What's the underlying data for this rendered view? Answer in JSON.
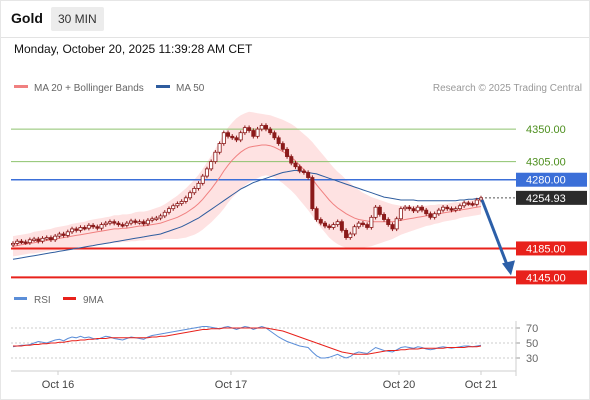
{
  "header": {
    "title": "Gold",
    "timeframe": "30 MIN"
  },
  "datetime": "Monday, October 20, 2025 11:39:28 AM CET",
  "credit": "Research © 2025 Trading Central",
  "colors": {
    "ma20": "#f08080",
    "ma50": "#2e5c9e",
    "band_fill": "#fdd8d8",
    "candle": "#8b1a1a",
    "support_line": "#e8211b",
    "pivot_line": "#3b6fd8",
    "resistance_line": "#8dc26d",
    "resistance_label": "#4d8f1e",
    "arrow": "#2c5fa8",
    "rsi": "#5b8ed8",
    "rsi_ma": "#e8211b"
  },
  "legend": {
    "ma20": "MA 20 + Bollinger Bands",
    "ma50": "MA 50"
  },
  "levels": [
    {
      "label": "4350.00",
      "kind": "resistance",
      "value": 4350
    },
    {
      "label": "4305.00",
      "kind": "resistance",
      "value": 4305
    },
    {
      "label": "4280.00",
      "kind": "pivot",
      "value": 4280
    },
    {
      "label": "4254.93",
      "kind": "last",
      "value": 4254.93
    },
    {
      "label": "4185.00",
      "kind": "support",
      "value": 4185
    },
    {
      "label": "4145.00",
      "kind": "support",
      "value": 4145
    }
  ],
  "rsi_panel": {
    "legend_rsi": "RSI",
    "legend_ma": "9MA",
    "ticks": [
      "70",
      "50",
      "30"
    ],
    "tick_values": [
      70,
      50,
      30
    ]
  },
  "x_axis": {
    "labels": [
      "Oct 16",
      "Oct 17",
      "Oct 20",
      "Oct 21"
    ]
  },
  "chart_data": {
    "type": "candlestick",
    "price_range": [
      4140,
      4375
    ],
    "closes": [
      4192,
      4195,
      4194,
      4193,
      4197,
      4198,
      4195,
      4199,
      4200,
      4197,
      4202,
      4205,
      4203,
      4208,
      4212,
      4210,
      4214,
      4213,
      4217,
      4215,
      4213,
      4218,
      4220,
      4222,
      4220,
      4218,
      4217,
      4220,
      4223,
      4221,
      4222,
      4219,
      4224,
      4226,
      4227,
      4230,
      4235,
      4240,
      4244,
      4247,
      4250,
      4255,
      4262,
      4268,
      4275,
      4285,
      4295,
      4305,
      4318,
      4330,
      4345,
      4340,
      4338,
      4335,
      4345,
      4352,
      4348,
      4340,
      4350,
      4355,
      4350,
      4345,
      4338,
      4330,
      4322,
      4312,
      4303,
      4298,
      4292,
      4290,
      4283,
      4240,
      4225,
      4220,
      4216,
      4214,
      4218,
      4222,
      4210,
      4200,
      4205,
      4215,
      4220,
      4218,
      4214,
      4228,
      4242,
      4232,
      4225,
      4218,
      4212,
      4226,
      4240,
      4242,
      4240,
      4237,
      4242,
      4238,
      4233,
      4228,
      4233,
      4238,
      4242,
      4240,
      4238,
      4240,
      4244,
      4248,
      4247,
      4246,
      4252,
      4254.93
    ],
    "ma20": [
      4188,
      4189,
      4190,
      4191,
      4192,
      4193,
      4194,
      4195,
      4196,
      4197,
      4198,
      4199,
      4200,
      4201,
      4202,
      4203,
      4204,
      4205,
      4206,
      4207,
      4208,
      4209,
      4210,
      4211,
      4212,
      4212,
      4213,
      4213,
      4214,
      4215,
      4216,
      4216,
      4217,
      4218,
      4219,
      4220,
      4222,
      4224,
      4226,
      4228,
      4231,
      4234,
      4238,
      4242,
      4247,
      4253,
      4260,
      4267,
      4275,
      4283,
      4292,
      4300,
      4307,
      4313,
      4318,
      4322,
      4325,
      4326,
      4327,
      4328,
      4328,
      4327,
      4325,
      4322,
      4319,
      4315,
      4311,
      4306,
      4300,
      4294,
      4288,
      4281,
      4273,
      4266,
      4259,
      4252,
      4246,
      4241,
      4237,
      4233,
      4230,
      4227,
      4225,
      4224,
      4223,
      4222,
      4222,
      4222,
      4222,
      4222,
      4222,
      4223,
      4224,
      4225,
      4226,
      4227,
      4228,
      4229,
      4230,
      4231,
      4232,
      4233,
      4234,
      4235,
      4236,
      4237,
      4238,
      4239,
      4240,
      4241,
      4242,
      4243
    ],
    "band_width": [
      14,
      14,
      14,
      14,
      14,
      15,
      15,
      15,
      15,
      15,
      16,
      16,
      16,
      16,
      17,
      17,
      17,
      17,
      18,
      18,
      18,
      18,
      18,
      18,
      19,
      19,
      19,
      19,
      19,
      20,
      20,
      20,
      20,
      21,
      22,
      23,
      24,
      26,
      28,
      30,
      32,
      34,
      36,
      38,
      40,
      42,
      44,
      46,
      48,
      50,
      52,
      52,
      52,
      52,
      51,
      50,
      49,
      47,
      45,
      43,
      42,
      42,
      42,
      43,
      44,
      45,
      46,
      47,
      48,
      49,
      50,
      51,
      52,
      52,
      52,
      52,
      51,
      50,
      49,
      47,
      45,
      43,
      41,
      38,
      36,
      34,
      32,
      30,
      28,
      26,
      24,
      22,
      20,
      19,
      18,
      17,
      16,
      15,
      14,
      14,
      13,
      13,
      12,
      12,
      12,
      12,
      11,
      11,
      11,
      11,
      11,
      11
    ],
    "ma50": [
      4170,
      4171,
      4172,
      4173,
      4174,
      4175,
      4176,
      4177,
      4178,
      4179,
      4180,
      4181,
      4182,
      4183,
      4184,
      4185,
      4186,
      4187,
      4188,
      4189,
      4190,
      4191,
      4192,
      4193,
      4194,
      4195,
      4196,
      4197,
      4198,
      4199,
      4200,
      4201,
      4202,
      4203,
      4204,
      4205,
      4207,
      4209,
      4211,
      4213,
      4215,
      4218,
      4221,
      4224,
      4227,
      4231,
      4235,
      4239,
      4243,
      4247,
      4251,
      4255,
      4259,
      4263,
      4267,
      4270,
      4273,
      4276,
      4278,
      4280,
      4282,
      4284,
      4286,
      4288,
      4290,
      4291,
      4292,
      4293,
      4292,
      4291,
      4290,
      4289,
      4288,
      4286,
      4284,
      4282,
      4280,
      4278,
      4276,
      4274,
      4272,
      4270,
      4268,
      4266,
      4264,
      4262,
      4260,
      4258,
      4256,
      4255,
      4254,
      4253,
      4252,
      4252,
      4252,
      4252,
      4251,
      4251,
      4251,
      4251,
      4251,
      4251,
      4251,
      4251,
      4251,
      4251,
      4252,
      4252,
      4253,
      4253,
      4254,
      4254
    ],
    "rsi": [
      45,
      46,
      47,
      47,
      48,
      50,
      52,
      51,
      50,
      52,
      54,
      55,
      53,
      56,
      58,
      57,
      59,
      57,
      58,
      56,
      55,
      57,
      59,
      58,
      56,
      55,
      54,
      56,
      58,
      57,
      56,
      55,
      58,
      60,
      61,
      62,
      63,
      64,
      65,
      66,
      67,
      68,
      69,
      70,
      71,
      72,
      72,
      71,
      70,
      69,
      71,
      72,
      70,
      68,
      70,
      72,
      71,
      68,
      70,
      72,
      70,
      66,
      62,
      58,
      55,
      52,
      50,
      48,
      46,
      45,
      44,
      38,
      33,
      30,
      30,
      31,
      33,
      35,
      32,
      30,
      32,
      36,
      38,
      37,
      36,
      40,
      44,
      42,
      40,
      39,
      38,
      41,
      44,
      45,
      44,
      43,
      45,
      44,
      42,
      41,
      42,
      44,
      45,
      44,
      43,
      44,
      45,
      46,
      46,
      45,
      46,
      47
    ],
    "rsi_ma": [
      46,
      46,
      46,
      47,
      47,
      48,
      48,
      49,
      49,
      50,
      50,
      51,
      51,
      52,
      53,
      53,
      54,
      54,
      55,
      55,
      56,
      56,
      56,
      57,
      57,
      57,
      57,
      57,
      57,
      57,
      57,
      57,
      57,
      58,
      58,
      59,
      59,
      60,
      61,
      62,
      63,
      64,
      65,
      66,
      67,
      68,
      68,
      69,
      69,
      69,
      70,
      70,
      70,
      70,
      70,
      70,
      70,
      70,
      70,
      70,
      70,
      69,
      68,
      67,
      66,
      64,
      62,
      60,
      58,
      56,
      54,
      52,
      50,
      48,
      46,
      44,
      42,
      40,
      38,
      37,
      36,
      35,
      35,
      35,
      35,
      36,
      37,
      38,
      39,
      40,
      40,
      40,
      41,
      41,
      42,
      42,
      42,
      43,
      43,
      43,
      43,
      43,
      43,
      44,
      44,
      44,
      44,
      44,
      45,
      45,
      45,
      46
    ],
    "forecast_target": 4145
  }
}
